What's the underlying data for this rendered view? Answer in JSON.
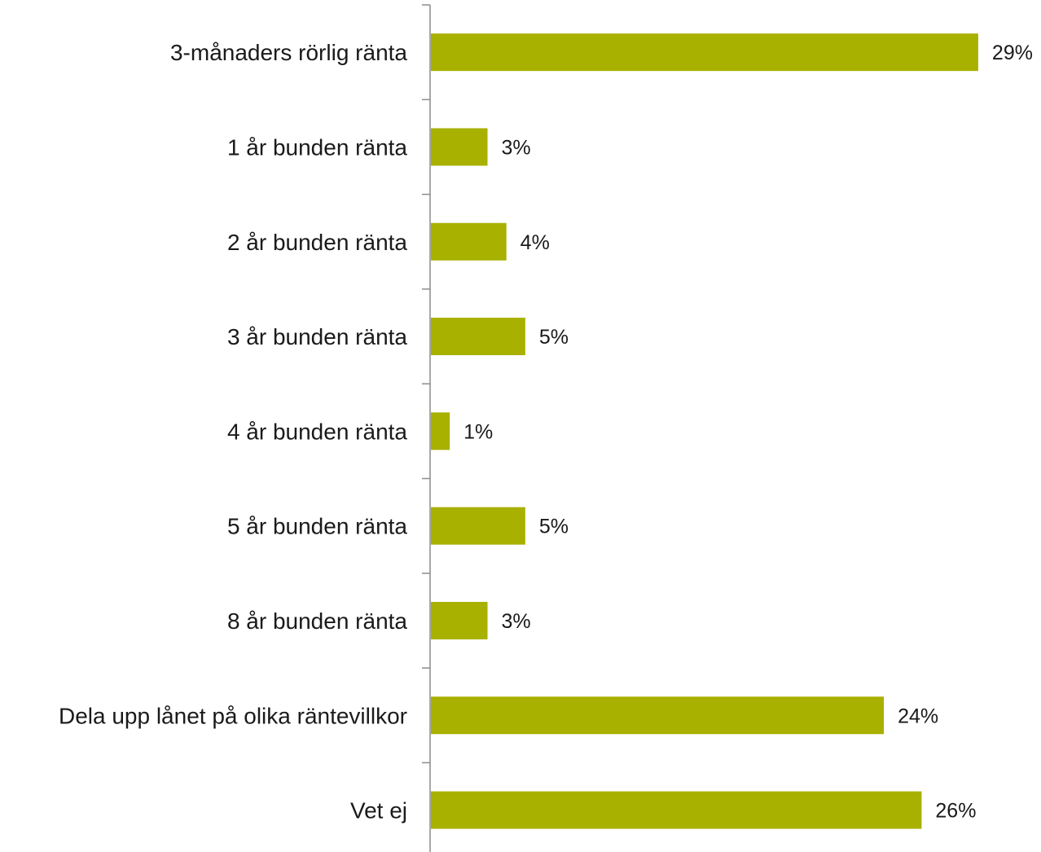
{
  "chart_data": {
    "type": "bar",
    "orientation": "horizontal",
    "title": "",
    "xlabel": "",
    "ylabel": "",
    "categories": [
      "3-månaders rörlig ränta",
      "1 år bunden ränta",
      "2 år bunden ränta",
      "3 år bunden ränta",
      "4 år bunden ränta",
      "5 år bunden ränta",
      "8 år bunden ränta",
      "Dela upp lånet på olika räntevillkor",
      "Vet ej"
    ],
    "values": [
      29,
      3,
      4,
      5,
      1,
      5,
      3,
      24,
      26
    ],
    "value_labels": [
      "29%",
      "3%",
      "4%",
      "5%",
      "1%",
      "5%",
      "3%",
      "24%",
      "26%"
    ],
    "unit": "%",
    "grid": false,
    "legend": "none",
    "bar_color": "#a8b000",
    "axis_color": "#8c8c8c"
  }
}
